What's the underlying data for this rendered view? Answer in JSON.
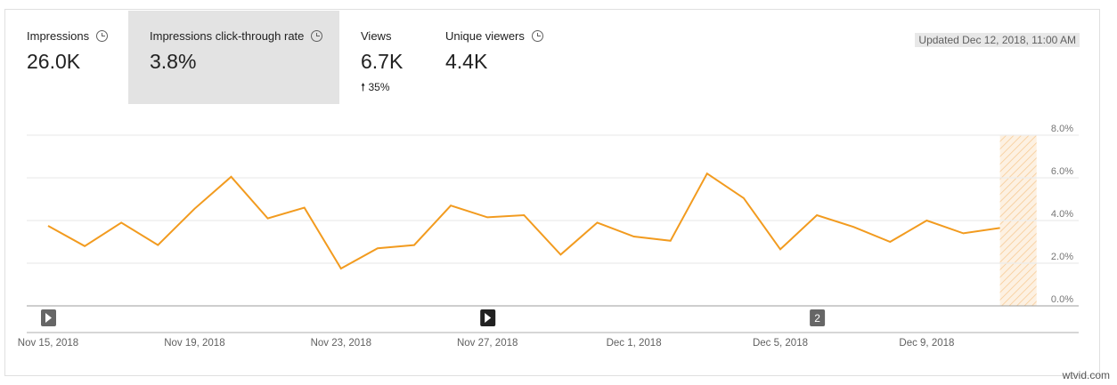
{
  "metrics": [
    {
      "label": "Impressions",
      "value": "26.0K",
      "icon": "clock-icon"
    },
    {
      "label": "Impressions click-through rate",
      "value": "3.8%",
      "icon": "clock-icon",
      "selected": true
    },
    {
      "label": "Views",
      "value": "6.7K",
      "delta": "35%",
      "delta_icon": "arrow-up-icon"
    },
    {
      "label": "Unique viewers",
      "value": "4.4K",
      "icon": "clock-icon"
    }
  ],
  "updated": "Updated Dec 12, 2018, 11:00 AM",
  "watermark": "wtvid.com",
  "chart_data": {
    "type": "line",
    "color": "#f29b1f",
    "ylim": [
      0,
      8
    ],
    "yticks": [
      "0.0%",
      "2.0%",
      "4.0%",
      "6.0%",
      "8.0%"
    ],
    "xticks": [
      "Nov 15, 2018",
      "Nov 19, 2018",
      "Nov 23, 2018",
      "Nov 27, 2018",
      "Dec 1, 2018",
      "Dec 5, 2018",
      "Dec 9, 2018"
    ],
    "x": [
      "Nov 15",
      "Nov 16",
      "Nov 17",
      "Nov 18",
      "Nov 19",
      "Nov 20",
      "Nov 21",
      "Nov 22",
      "Nov 23",
      "Nov 24",
      "Nov 25",
      "Nov 26",
      "Nov 27",
      "Nov 28",
      "Nov 29",
      "Nov 30",
      "Dec 1",
      "Dec 2",
      "Dec 3",
      "Dec 4",
      "Dec 5",
      "Dec 6",
      "Dec 7",
      "Dec 8",
      "Dec 9",
      "Dec 10",
      "Dec 11"
    ],
    "values": [
      3.75,
      2.8,
      3.9,
      2.85,
      4.55,
      6.05,
      4.1,
      4.6,
      1.75,
      2.7,
      2.85,
      4.7,
      4.15,
      4.25,
      2.4,
      3.9,
      3.25,
      3.05,
      6.2,
      5.05,
      2.65,
      4.25,
      3.7,
      3.0,
      4.0,
      3.4,
      3.65
    ],
    "incomplete_day": "Dec 12",
    "markers": [
      {
        "date": "Nov 15",
        "label": "▶",
        "dark": false
      },
      {
        "date": "Nov 27",
        "label": "▶",
        "dark": true
      },
      {
        "date": "Dec 6",
        "label": "2",
        "dark": false
      }
    ],
    "grid": true
  }
}
